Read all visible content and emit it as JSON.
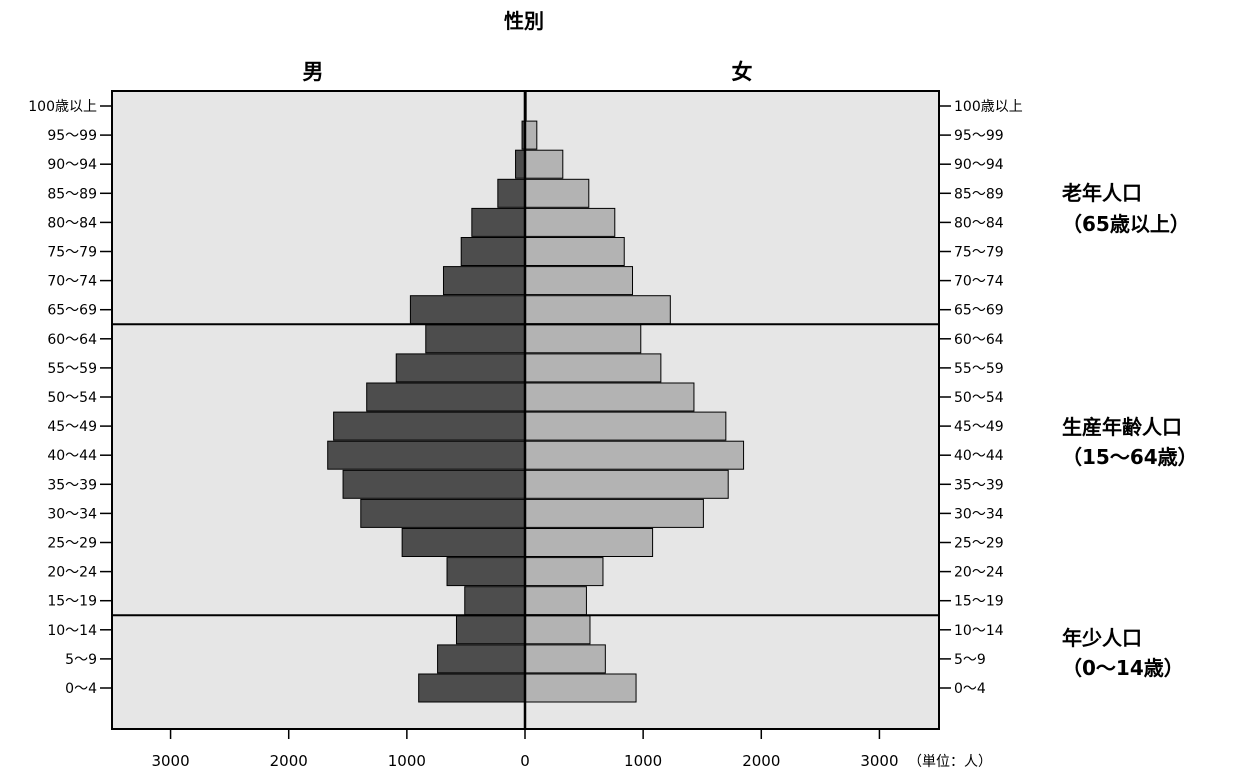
{
  "chart_data": {
    "type": "bar",
    "title": "性別",
    "series": [
      {
        "name": "男",
        "color": "#4d4d4d",
        "values": [
          900,
          740,
          580,
          510,
          660,
          1040,
          1390,
          1540,
          1670,
          1620,
          1340,
          1090,
          840,
          970,
          690,
          540,
          450,
          230,
          80,
          25,
          5
        ]
      },
      {
        "name": "女",
        "color": "#b3b3b3",
        "values": [
          940,
          680,
          550,
          520,
          660,
          1080,
          1510,
          1720,
          1850,
          1700,
          1430,
          1150,
          980,
          1230,
          910,
          840,
          760,
          540,
          320,
          100,
          10
        ]
      }
    ],
    "categories": [
      "0～4",
      "5～9",
      "10～14",
      "15～19",
      "20～24",
      "25～29",
      "30～34",
      "35～39",
      "40～44",
      "45～49",
      "50～54",
      "55～59",
      "60～64",
      "65～69",
      "70～74",
      "75～79",
      "80～84",
      "85～89",
      "90～94",
      "95～99",
      "100歳以上"
    ],
    "x_ticks": [
      "3000",
      "2000",
      "1000",
      "0",
      "1000",
      "2000",
      "3000"
    ],
    "x_tick_values": [
      -3000,
      -2000,
      -1000,
      0,
      1000,
      2000,
      3000
    ],
    "xlim": [
      -3500,
      3500
    ],
    "unit_label": "（単位：人）",
    "plot_background": "#e6e6e6",
    "group_labels": [
      {
        "line1": "老年人口",
        "line2": "（65歳以上）",
        "from": "65～69",
        "to": "100歳以上"
      },
      {
        "line1": "生産年齢人口",
        "line2": "（15～64歳）",
        "from": "15～19",
        "to": "60～64"
      },
      {
        "line1": "年少人口",
        "line2": "（0～14歳）",
        "from": "0～4",
        "to": "10～14"
      }
    ],
    "separator_after": [
      "60～64",
      "10～14"
    ]
  }
}
